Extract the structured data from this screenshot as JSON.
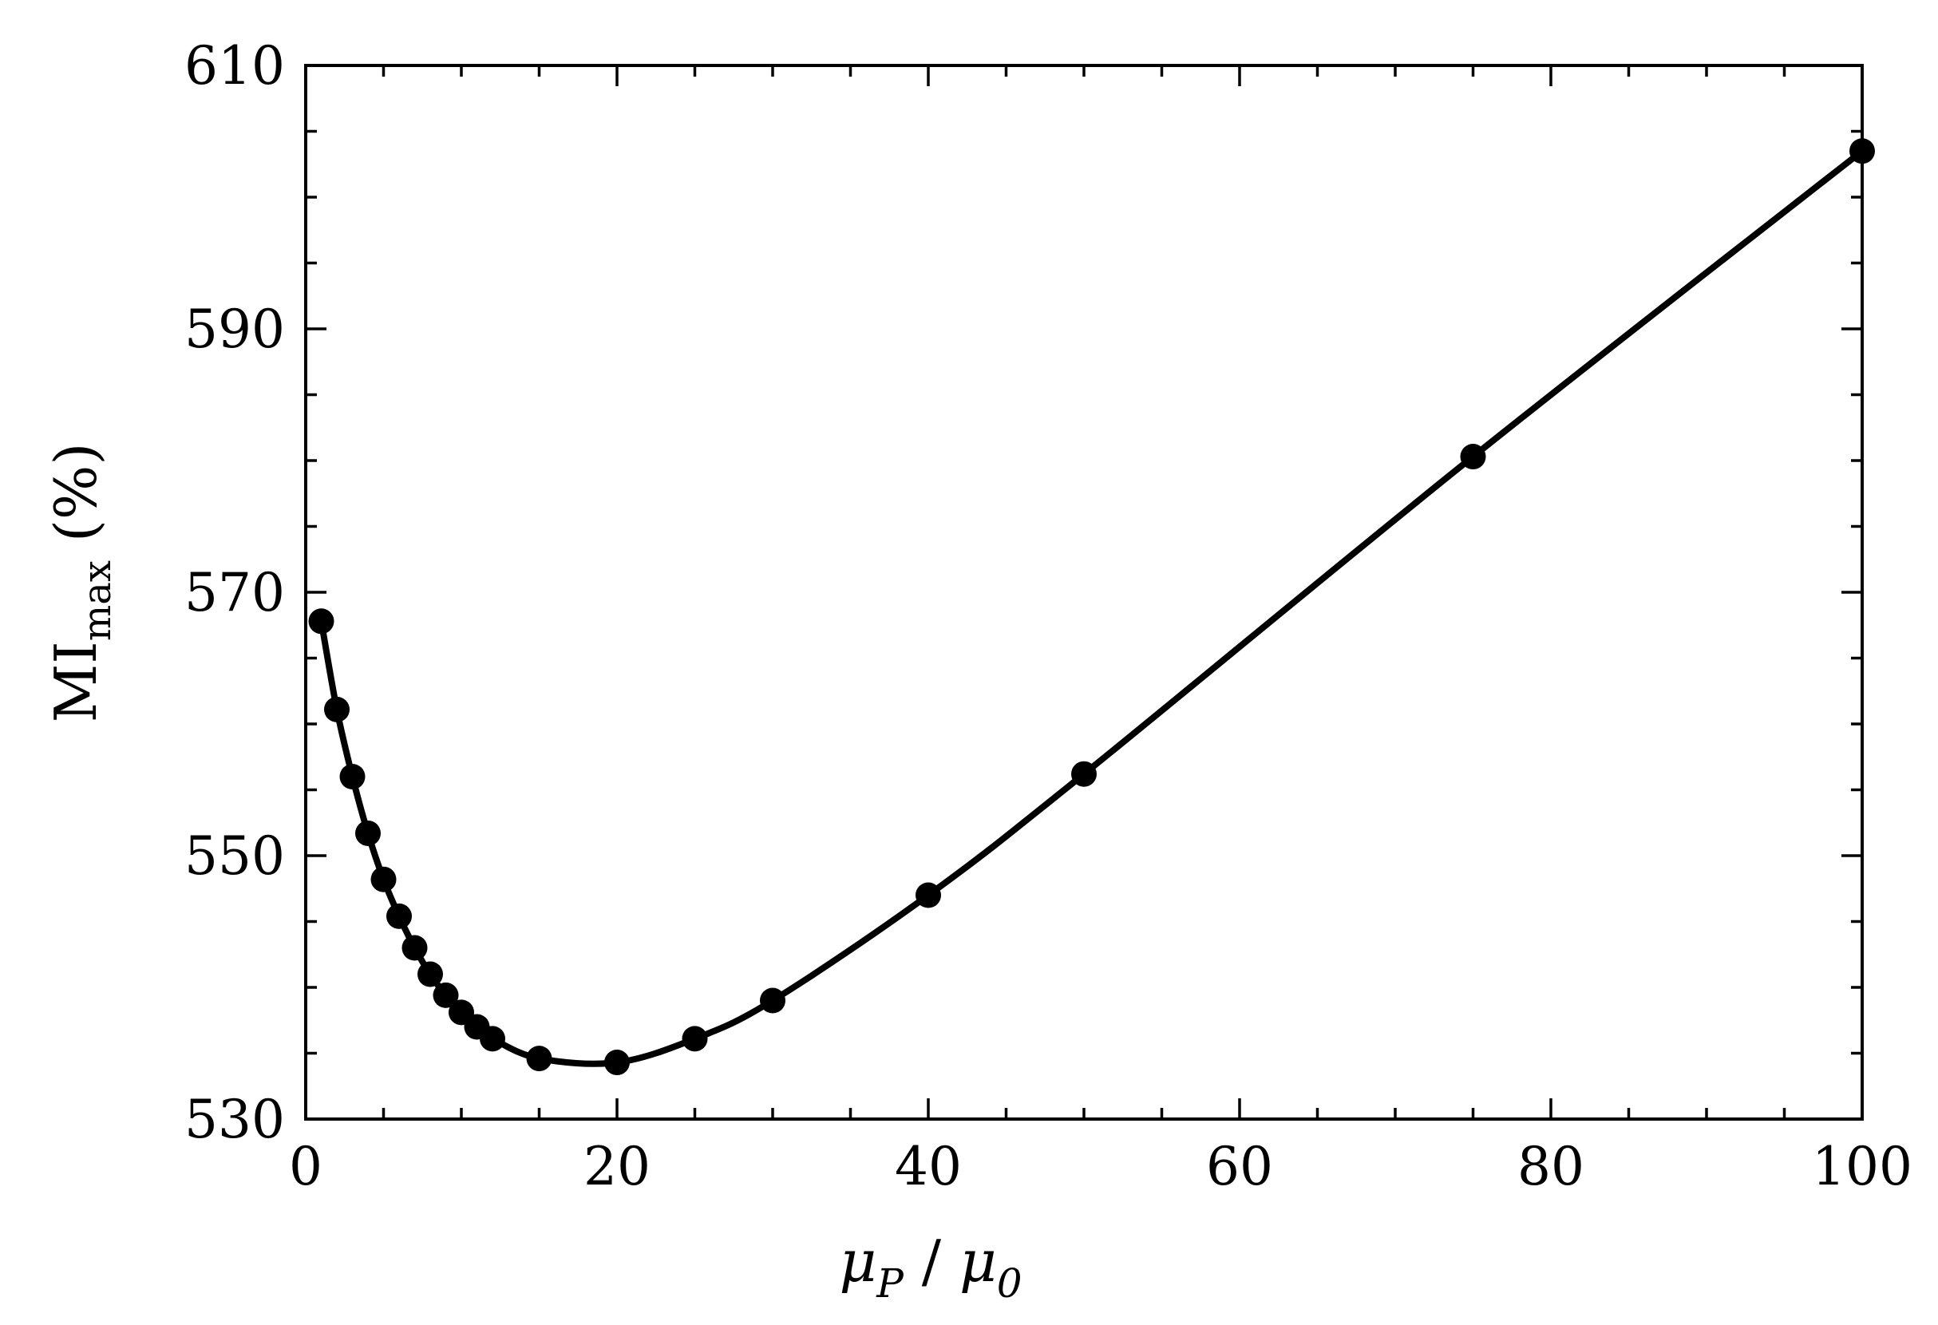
{
  "chart_data": {
    "type": "line",
    "title": "",
    "xlabel": {
      "main": "μ",
      "sub": "P",
      "separator": " / ",
      "main2": "μ",
      "sub2": "0"
    },
    "ylabel": {
      "main": "MI",
      "sub": "max",
      "suffix": " (%)"
    },
    "xlim": [
      0,
      100
    ],
    "ylim": [
      530,
      610
    ],
    "x_ticks": [
      0,
      20,
      40,
      60,
      80,
      100
    ],
    "x_tick_labels": [
      "0",
      "20",
      "40",
      "60",
      "80",
      "100"
    ],
    "x_minor_step": 5,
    "y_ticks": [
      530,
      550,
      570,
      590,
      610
    ],
    "y_tick_labels": [
      "530",
      "550",
      "570",
      "590",
      "610"
    ],
    "y_minor_step": 5,
    "tick_direction": "in",
    "mirror_ticks": true,
    "grid": false,
    "legend": "none",
    "series": [
      {
        "color": "#000000",
        "marker": "circle",
        "x": [
          1,
          2,
          3,
          4,
          5,
          6,
          7,
          8,
          9,
          10,
          11,
          12,
          15,
          20,
          25,
          30,
          40,
          50,
          75,
          100
        ],
        "y": [
          567.8,
          561.1,
          556.0,
          551.7,
          548.2,
          545.4,
          543.0,
          541.0,
          539.4,
          538.1,
          537.0,
          536.1,
          534.6,
          534.3,
          536.1,
          539.0,
          547.0,
          556.2,
          580.3,
          603.5
        ]
      }
    ]
  }
}
